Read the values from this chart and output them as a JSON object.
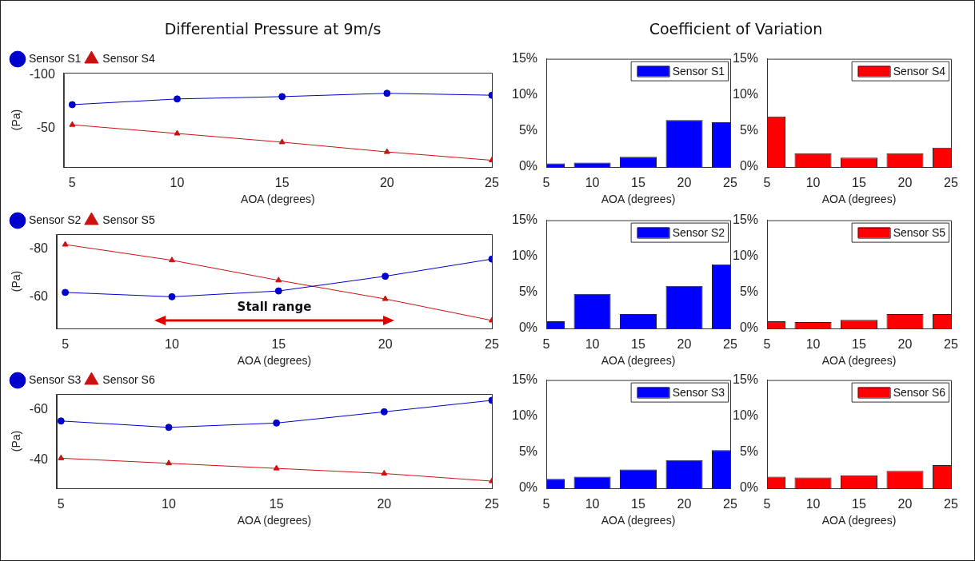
{
  "chart_data": [
    {
      "type": "line",
      "title": "Differential Pressure at 9m/s",
      "xlabel": "AOA (degrees)",
      "ylabel": "(Pa)",
      "x": [
        5,
        10,
        15,
        20,
        25
      ],
      "series": [
        {
          "name": "Sensor S1",
          "color": "#0000cc",
          "marker": "circle",
          "values": [
            -72.2,
            -77.5,
            -79.7,
            -82.8,
            -81
          ]
        },
        {
          "name": "Sensor S4",
          "color": "#cc1111",
          "marker": "triangle",
          "values": [
            -53.4,
            -45.3,
            -37.2,
            -28.1,
            -20.3
          ]
        }
      ],
      "xlim": [
        4.6,
        25
      ],
      "xticks": [
        5,
        10,
        15,
        20,
        25
      ],
      "ylim": [
        -14,
        -102
      ],
      "yticks": [
        -100,
        -50
      ],
      "legend": "top left",
      "line_style": "solid",
      "grid": false
    },
    {
      "type": "bar",
      "title": "Coefficient of Variation",
      "xlabel": "AOA (degrees)",
      "x": [
        5,
        10,
        15,
        20,
        25
      ],
      "series": [
        {
          "name": "Sensor S1",
          "color": "#0000ff",
          "values": [
            0.5,
            0.6,
            1.4,
            6.5,
            6.2
          ]
        }
      ],
      "xlim": [
        5,
        25
      ],
      "xticks": [
        5,
        10,
        15,
        20,
        25
      ],
      "ylim": [
        0,
        15
      ],
      "yticks": [
        {
          "value": 0,
          "label": "0%"
        },
        {
          "value": 5,
          "label": "5%"
        },
        {
          "value": 10,
          "label": "10%"
        },
        {
          "value": 15,
          "label": "15%"
        }
      ],
      "legend": "top right",
      "grid": false
    },
    {
      "type": "bar",
      "xlabel": "AOA (degrees)",
      "x": [
        5,
        10,
        15,
        20,
        25
      ],
      "series": [
        {
          "name": "Sensor S4",
          "color": "#ff0000",
          "values": [
            7.0,
            1.9,
            1.3,
            1.9,
            2.7
          ]
        }
      ],
      "xlim": [
        5,
        25
      ],
      "xticks": [
        5,
        10,
        15,
        20,
        25
      ],
      "ylim": [
        0,
        15
      ],
      "yticks": [
        {
          "value": 0,
          "label": "0%"
        },
        {
          "value": 5,
          "label": "5%"
        },
        {
          "value": 10,
          "label": "10%"
        },
        {
          "value": 15,
          "label": "15%"
        }
      ],
      "legend": "top right",
      "grid": false
    },
    {
      "type": "line",
      "xlabel": "AOA (degrees)",
      "ylabel": "(Pa)",
      "x": [
        5,
        10,
        15,
        20,
        25
      ],
      "series": [
        {
          "name": "Sensor S2",
          "color": "#0000cc",
          "marker": "circle",
          "values": [
            -61.9,
            -60.1,
            -62.5,
            -68.6,
            -75.7
          ]
        },
        {
          "name": "Sensor S5",
          "color": "#cc1111",
          "marker": "triangle",
          "values": [
            -81.7,
            -75.2,
            -66.9,
            -59.2,
            -50.3
          ]
        }
      ],
      "xlim": [
        4.6,
        25
      ],
      "xticks": [
        5,
        10,
        15,
        20,
        25
      ],
      "ylim": [
        -47,
        -86
      ],
      "yticks": [
        -80,
        -60
      ],
      "legend": "top left",
      "line_style": "solid",
      "grid": false,
      "annotations": [
        "Stall range"
      ]
    },
    {
      "type": "bar",
      "xlabel": "AOA (degrees)",
      "x": [
        5,
        10,
        15,
        20,
        25
      ],
      "series": [
        {
          "name": "Sensor S2",
          "color": "#0000ff",
          "values": [
            1.0,
            4.8,
            2.0,
            5.9,
            8.9
          ]
        }
      ],
      "xlim": [
        5,
        25
      ],
      "xticks": [
        5,
        10,
        15,
        20,
        25
      ],
      "ylim": [
        0,
        15
      ],
      "yticks": [
        {
          "value": 0,
          "label": "0%"
        },
        {
          "value": 5,
          "label": "5%"
        },
        {
          "value": 10,
          "label": "10%"
        },
        {
          "value": 15,
          "label": "15%"
        }
      ],
      "legend": "top right",
      "grid": false
    },
    {
      "type": "bar",
      "xlabel": "AOA (degrees)",
      "x": [
        5,
        10,
        15,
        20,
        25
      ],
      "series": [
        {
          "name": "Sensor S5",
          "color": "#ff0000",
          "values": [
            1.0,
            0.9,
            1.2,
            2.0,
            2.0
          ]
        }
      ],
      "xlim": [
        5,
        25
      ],
      "xticks": [
        5,
        10,
        15,
        20,
        25
      ],
      "ylim": [
        0,
        15
      ],
      "yticks": [
        {
          "value": 0,
          "label": "0%"
        },
        {
          "value": 5,
          "label": "5%"
        },
        {
          "value": 10,
          "label": "10%"
        },
        {
          "value": 15,
          "label": "15%"
        }
      ],
      "legend": "top right",
      "grid": false
    },
    {
      "type": "line",
      "xlabel": "AOA (degrees)",
      "ylabel": "(Pa)",
      "x": [
        5,
        10,
        15,
        20,
        25
      ],
      "series": [
        {
          "name": "Sensor S3",
          "color": "#0000cc",
          "marker": "circle",
          "values": [
            -55.4,
            -52.9,
            -54.6,
            -59,
            -63.5
          ]
        },
        {
          "name": "Sensor S6",
          "color": "#cc1111",
          "marker": "triangle",
          "values": [
            -40.8,
            -38.8,
            -36.8,
            -34.8,
            -31.8
          ]
        }
      ],
      "xlim": [
        4.8,
        25
      ],
      "xticks": [
        5,
        10,
        15,
        20,
        25
      ],
      "ylim": [
        -29,
        -66
      ],
      "yticks": [
        -60,
        -40
      ],
      "legend": "top left",
      "line_style": "solid",
      "grid": false
    },
    {
      "type": "bar",
      "xlabel": "AOA (degrees)",
      "x": [
        5,
        10,
        15,
        20,
        25
      ],
      "series": [
        {
          "name": "Sensor S3",
          "color": "#0000ff",
          "values": [
            1.3,
            1.6,
            2.6,
            3.9,
            5.3
          ]
        }
      ],
      "xlim": [
        5,
        25
      ],
      "xticks": [
        5,
        10,
        15,
        20,
        25
      ],
      "ylim": [
        0,
        15
      ],
      "yticks": [
        {
          "value": 0,
          "label": "0%"
        },
        {
          "value": 5,
          "label": "5%"
        },
        {
          "value": 10,
          "label": "10%"
        },
        {
          "value": 15,
          "label": "15%"
        }
      ],
      "legend": "top right",
      "grid": false
    },
    {
      "type": "bar",
      "xlabel": "AOA (degrees)",
      "x": [
        5,
        10,
        15,
        20,
        25
      ],
      "series": [
        {
          "name": "Sensor S6",
          "color": "#ff0000",
          "values": [
            1.6,
            1.5,
            1.8,
            2.4,
            3.2
          ]
        }
      ],
      "xlim": [
        5,
        25
      ],
      "xticks": [
        5,
        10,
        15,
        20,
        25
      ],
      "ylim": [
        0,
        15
      ],
      "yticks": [
        {
          "value": 0,
          "label": "0%"
        },
        {
          "value": 5,
          "label": "5%"
        },
        {
          "value": 10,
          "label": "10%"
        },
        {
          "value": 15,
          "label": "15%"
        }
      ],
      "legend": "top right",
      "grid": false
    }
  ]
}
